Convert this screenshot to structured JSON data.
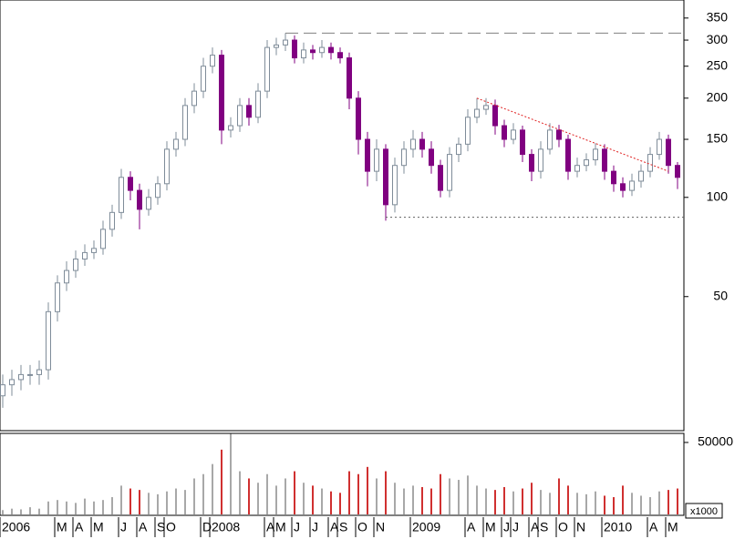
{
  "chart_data": {
    "type": "candlestick",
    "log_scale": true,
    "up_color": "#ffffff",
    "up_stroke": "#7f8c99",
    "down_color": "#800080",
    "volume_up_color": "#a8a8a8",
    "volume_down_color": "#d03030",
    "xlim": [
      -0.3,
      74.7
    ],
    "ylim": [
      19.6,
      397
    ],
    "yticks": [
      50,
      100,
      150,
      200,
      250,
      300,
      350
    ],
    "volume_ylim": [
      0,
      56300
    ],
    "volume_yticks": [
      50000
    ],
    "volume_unit": "x1000",
    "xticks": [
      {
        "value": 0,
        "label": "2006"
      },
      {
        "value": 6,
        "label": "M"
      },
      {
        "value": 8,
        "label": "A"
      },
      {
        "value": 10,
        "label": "M"
      },
      {
        "value": 13,
        "label": "J"
      },
      {
        "value": 15,
        "label": "A"
      },
      {
        "value": 17,
        "label": "S"
      },
      {
        "value": 18,
        "label": "O"
      },
      {
        "value": 22,
        "label": "D"
      },
      {
        "value": 23,
        "label": "2008"
      },
      {
        "value": 29,
        "label": "A"
      },
      {
        "value": 30,
        "label": "M"
      },
      {
        "value": 32,
        "label": "J"
      },
      {
        "value": 34,
        "label": "J"
      },
      {
        "value": 36,
        "label": "A"
      },
      {
        "value": 37,
        "label": "S"
      },
      {
        "value": 39,
        "label": "O"
      },
      {
        "value": 41,
        "label": "N"
      },
      {
        "value": 45,
        "label": "2009"
      },
      {
        "value": 51,
        "label": "A"
      },
      {
        "value": 53,
        "label": "M"
      },
      {
        "value": 55,
        "label": "J"
      },
      {
        "value": 56,
        "label": "J"
      },
      {
        "value": 58,
        "label": "A"
      },
      {
        "value": 59,
        "label": "S"
      },
      {
        "value": 61,
        "label": "O"
      },
      {
        "value": 63,
        "label": "N"
      },
      {
        "value": 66,
        "label": "2010"
      },
      {
        "value": 71,
        "label": "A"
      },
      {
        "value": 73,
        "label": "M"
      }
    ],
    "open": [
      25,
      27,
      28,
      29,
      29,
      30,
      45,
      55,
      60,
      65,
      68,
      70,
      80,
      90,
      115,
      105,
      92,
      100,
      110,
      140,
      150,
      190,
      210,
      250,
      270,
      160,
      165,
      190,
      175,
      210,
      285,
      290,
      300,
      265,
      280,
      275,
      285,
      275,
      265,
      200,
      150,
      120,
      140,
      95,
      125,
      140,
      150,
      140,
      125,
      105,
      135,
      145,
      175,
      185,
      190,
      165,
      150,
      160,
      135,
      120,
      140,
      160,
      150,
      120,
      125,
      130,
      140,
      120,
      110,
      105,
      112,
      120,
      135,
      150,
      125
    ],
    "high": [
      29,
      30,
      31,
      31,
      32,
      48,
      58,
      64,
      69,
      72,
      74,
      85,
      95,
      122,
      120,
      110,
      106,
      116,
      148,
      158,
      200,
      222,
      265,
      285,
      280,
      175,
      200,
      200,
      222,
      300,
      305,
      315,
      310,
      295,
      290,
      300,
      295,
      285,
      275,
      210,
      158,
      150,
      145,
      132,
      148,
      160,
      158,
      148,
      130,
      142,
      152,
      185,
      200,
      200,
      198,
      172,
      168,
      165,
      140,
      148,
      168,
      166,
      155,
      132,
      136,
      146,
      145,
      125,
      115,
      118,
      126,
      142,
      158,
      155,
      128
    ],
    "low": [
      23,
      25,
      26,
      27,
      27,
      28,
      42,
      52,
      57,
      62,
      65,
      67,
      76,
      86,
      98,
      80,
      88,
      95,
      105,
      133,
      143,
      180,
      200,
      238,
      145,
      152,
      158,
      165,
      168,
      200,
      270,
      278,
      255,
      255,
      262,
      265,
      262,
      255,
      185,
      135,
      108,
      112,
      85,
      90,
      118,
      132,
      132,
      118,
      100,
      100,
      128,
      138,
      168,
      178,
      155,
      142,
      145,
      128,
      112,
      114,
      135,
      142,
      113,
      115,
      120,
      125,
      113,
      104,
      100,
      101,
      107,
      115,
      130,
      118,
      106
    ],
    "close": [
      27,
      28,
      29,
      29,
      30,
      45,
      55,
      60,
      65,
      68,
      70,
      80,
      90,
      115,
      105,
      92,
      100,
      110,
      140,
      150,
      190,
      210,
      250,
      270,
      160,
      165,
      190,
      175,
      210,
      285,
      290,
      300,
      265,
      280,
      275,
      285,
      275,
      265,
      200,
      150,
      120,
      140,
      95,
      125,
      140,
      150,
      140,
      125,
      105,
      135,
      145,
      175,
      185,
      190,
      165,
      150,
      160,
      135,
      120,
      140,
      160,
      150,
      120,
      125,
      130,
      140,
      120,
      110,
      105,
      112,
      120,
      135,
      150,
      125,
      115
    ],
    "volume": [
      3000,
      4000,
      3500,
      5000,
      4000,
      9000,
      10000,
      9000,
      8000,
      11000,
      9000,
      10000,
      12000,
      20000,
      18000,
      17000,
      15000,
      14000,
      16000,
      18000,
      17000,
      25000,
      28000,
      35000,
      45000,
      56000,
      30000,
      25000,
      22000,
      28000,
      20000,
      25000,
      30000,
      22000,
      20000,
      18000,
      16000,
      15000,
      30000,
      28000,
      33000,
      25000,
      30000,
      22000,
      18000,
      20000,
      19000,
      18000,
      28000,
      25000,
      24000,
      27000,
      20000,
      18000,
      17000,
      19000,
      16000,
      18000,
      22000,
      17000,
      15000,
      25000,
      20000,
      15000,
      14000,
      16000,
      13000,
      12000,
      20000,
      15000,
      13000,
      12000,
      16000,
      17000,
      18000
    ],
    "reference_lines": [
      {
        "value": 315,
        "from": 31,
        "style": "dashed",
        "color": "#808080"
      },
      {
        "value": 87,
        "from": 42,
        "style": "dotted",
        "color": "#606060"
      }
    ],
    "trendline": {
      "x": [
        52,
        73
      ],
      "y": [
        200,
        120
      ],
      "color": "#e02020"
    }
  }
}
